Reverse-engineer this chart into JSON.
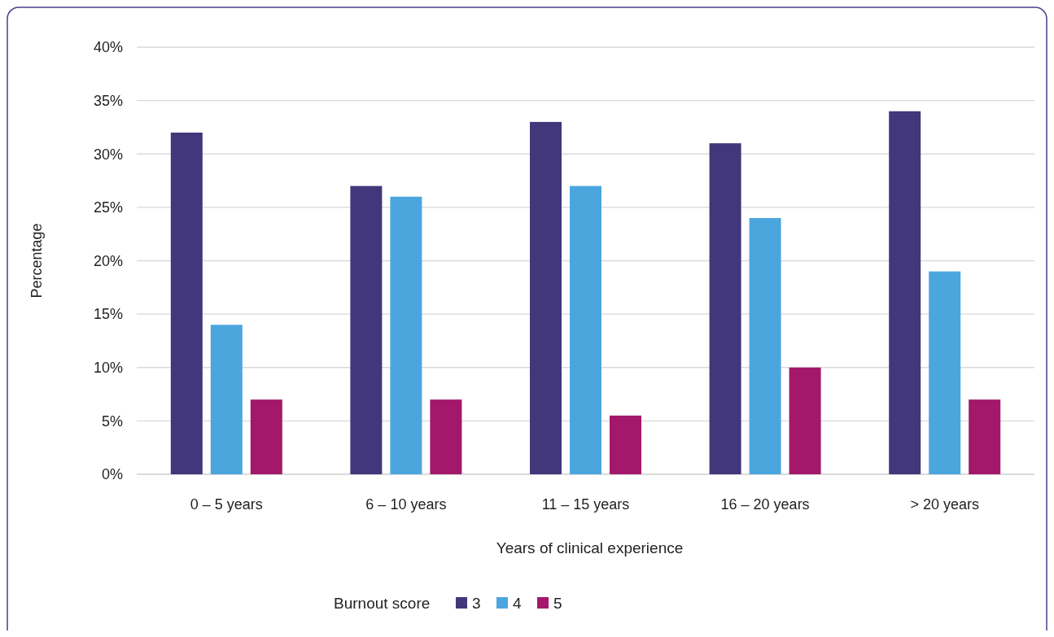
{
  "chart_data": {
    "type": "bar",
    "xlabel": "Years of clinical experience",
    "ylabel": "Percentage",
    "legend_title": "Burnout score",
    "categories": [
      "0 – 5 years",
      "6 – 10 years",
      "11 – 15 years",
      "16 – 20 years",
      "> 20 years"
    ],
    "series": [
      {
        "name": "3",
        "color": "#41377a",
        "values": [
          32,
          27,
          33,
          31,
          34
        ]
      },
      {
        "name": "4",
        "color": "#4ca6de",
        "values": [
          14,
          26,
          27,
          24,
          19
        ]
      },
      {
        "name": "5",
        "color": "#a3186b",
        "values": [
          7,
          7,
          5.5,
          10,
          7
        ]
      }
    ],
    "ylim": [
      0,
      40
    ],
    "yticks": [
      {
        "value": 0,
        "label": "0%"
      },
      {
        "value": 5,
        "label": "5%"
      },
      {
        "value": 10,
        "label": "10%"
      },
      {
        "value": 15,
        "label": "15%"
      },
      {
        "value": 20,
        "label": "20%"
      },
      {
        "value": 25,
        "label": "25%"
      },
      {
        "value": 30,
        "label": "30%"
      },
      {
        "value": 35,
        "label": "35%"
      },
      {
        "value": 40,
        "label": "40%"
      }
    ],
    "grid": "y",
    "legend": "bottom"
  }
}
